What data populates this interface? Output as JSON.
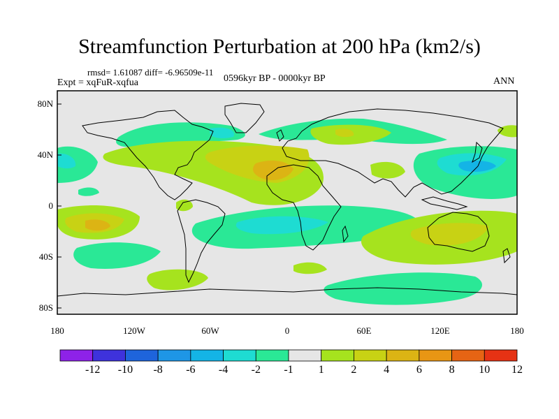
{
  "title": "Streamfunction Perturbation at 200 hPa (km2/s)",
  "stats": "rmsd= 1.61087 diff= -6.96509e-11",
  "experiment": "Expt = xqFuR-xqfua",
  "period": "0596kyr BP - 0000kyr BP",
  "season": "ANN",
  "lat_ticks": [
    "80N",
    "40N",
    "0",
    "40S",
    "80S"
  ],
  "lon_ticks": [
    "180",
    "120W",
    "60W",
    "0",
    "60E",
    "120E",
    "180"
  ],
  "colorbar": {
    "colors": [
      "#8e22e8",
      "#3e32dc",
      "#1e64dc",
      "#1e96e6",
      "#14b4e6",
      "#1edcd2",
      "#2ae896",
      "#e6e6e6",
      "#a6e31e",
      "#c8d214",
      "#dcb414",
      "#e89614",
      "#e66414",
      "#e63214"
    ],
    "labels": [
      "-12",
      "-10",
      "-8",
      "-6",
      "-4",
      "-2",
      "-1",
      "1",
      "2",
      "4",
      "6",
      "8",
      "10",
      "12"
    ]
  },
  "colors": {
    "neutral": "#e6e6e6",
    "n1": "#2ae896",
    "n2": "#1edcd2",
    "n4": "#14b4e6",
    "p1": "#a6e31e",
    "p2": "#c8d214",
    "p4": "#dcb414",
    "coast": "#000000"
  }
}
